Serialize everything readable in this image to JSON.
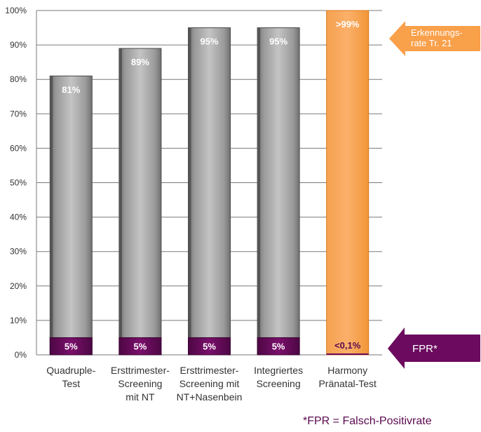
{
  "chart_data": {
    "type": "bar",
    "categories": [
      [
        "Quadruple-",
        "Test"
      ],
      [
        "Ersttrimester-",
        "Screening",
        "mit NT"
      ],
      [
        "Ersttrimester-",
        "Screening mit",
        "NT+Nasenbein"
      ],
      [
        "Integriertes",
        "Screening"
      ],
      [
        "Harmony",
        "Pränatal-Test"
      ]
    ],
    "series": [
      {
        "values": [
          81,
          89,
          95,
          95,
          99
        ],
        "labels": [
          "81%",
          "89%",
          "95%",
          "95%",
          ">99%"
        ]
      },
      {
        "values": [
          5,
          5,
          5,
          5,
          0.1
        ],
        "labels": [
          "5%",
          "5%",
          "5%",
          "5%",
          "<0,1%"
        ]
      }
    ],
    "ylim": [
      0,
      100
    ],
    "yticks": [
      "0%",
      "10%",
      "20%",
      "30%",
      "40%",
      "50%",
      "60%",
      "70%",
      "80%",
      "90%",
      "100%"
    ],
    "grid": true,
    "annotations": {
      "detection_arrow": [
        "Erkennungs-",
        "rate Tr. 21"
      ],
      "fpr_arrow": "FPR*",
      "footnote": "*FPR = Falsch-Positivrate"
    },
    "colors": {
      "gray_bar": "#9c9c9c",
      "orange_bar": "#f9a04a",
      "fpr_bar": "#6b0a5e",
      "detection_arrow": "#f9a04a",
      "fpr_arrow": "#6b0a5e"
    }
  }
}
